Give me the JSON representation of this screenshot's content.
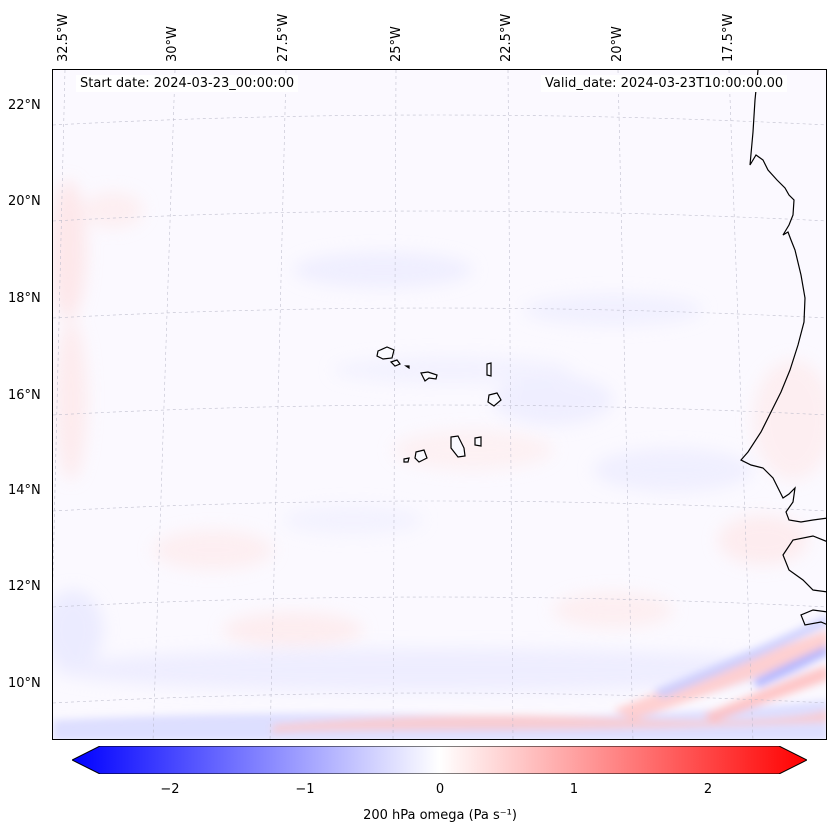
{
  "map": {
    "region": "Eastern tropical Atlantic / Cape Verde",
    "start_date_text": "Start date: 2024-03-23_00:00:00",
    "valid_date_text": "Valid_date: 2024-03-23T10:00:00.00",
    "longitude_labels": [
      "32.5°W",
      "30°W",
      "27.5°W",
      "25°W",
      "22.5°W",
      "20°W",
      "17.5°W"
    ],
    "latitude_labels": [
      "22°N",
      "20°N",
      "18°N",
      "16°N",
      "14°N",
      "12°N",
      "10°N"
    ],
    "field_variable": "200 hPa omega"
  },
  "colorbar": {
    "ticks": [
      "−2",
      "−1",
      "0",
      "1",
      "2"
    ],
    "label": "200 hPa omega (Pa s⁻¹)",
    "colors": {
      "negative_end": "#0000ff",
      "neutral": "#ffffff",
      "positive_end": "#ff0000"
    }
  }
}
